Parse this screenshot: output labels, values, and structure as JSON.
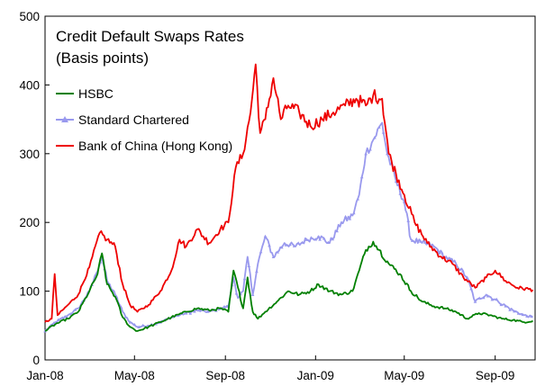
{
  "chart_data": {
    "type": "line",
    "title": "Credit Default Swaps Rates",
    "subtitle": "(Basis points)",
    "xlabel": "",
    "ylabel": "",
    "ylim": [
      0,
      500
    ],
    "yticks": [
      0,
      100,
      200,
      300,
      400,
      500
    ],
    "xlim": [
      "2008-01-01",
      "2009-10-25"
    ],
    "xticks": [
      {
        "date": "2008-01-01",
        "label": "Jan-08"
      },
      {
        "date": "2008-05-01",
        "label": "May-08"
      },
      {
        "date": "2008-09-01",
        "label": "Sep-08"
      },
      {
        "date": "2009-01-01",
        "label": "Jan-09"
      },
      {
        "date": "2009-05-01",
        "label": "May-09"
      },
      {
        "date": "2009-09-01",
        "label": "Sep-09"
      }
    ],
    "grid": false,
    "legend_position": "top-left",
    "series": [
      {
        "name": "HSBC",
        "color": "#008000",
        "marker": "none",
        "points": [
          [
            "2008-01-01",
            42
          ],
          [
            "2008-01-15",
            52
          ],
          [
            "2008-02-01",
            60
          ],
          [
            "2008-02-15",
            70
          ],
          [
            "2008-03-01",
            100
          ],
          [
            "2008-03-12",
            125
          ],
          [
            "2008-03-18",
            155
          ],
          [
            "2008-03-25",
            110
          ],
          [
            "2008-04-05",
            92
          ],
          [
            "2008-04-15",
            62
          ],
          [
            "2008-04-25",
            48
          ],
          [
            "2008-05-05",
            42
          ],
          [
            "2008-05-20",
            48
          ],
          [
            "2008-06-05",
            55
          ],
          [
            "2008-06-20",
            62
          ],
          [
            "2008-07-10",
            70
          ],
          [
            "2008-07-25",
            75
          ],
          [
            "2008-08-10",
            72
          ],
          [
            "2008-08-25",
            75
          ],
          [
            "2008-09-05",
            70
          ],
          [
            "2008-09-12",
            130
          ],
          [
            "2008-09-18",
            105
          ],
          [
            "2008-09-25",
            75
          ],
          [
            "2008-10-01",
            120
          ],
          [
            "2008-10-08",
            70
          ],
          [
            "2008-10-15",
            60
          ],
          [
            "2008-10-25",
            70
          ],
          [
            "2008-11-10",
            85
          ],
          [
            "2008-11-25",
            100
          ],
          [
            "2008-12-10",
            95
          ],
          [
            "2008-12-25",
            100
          ],
          [
            "2009-01-05",
            110
          ],
          [
            "2009-01-20",
            100
          ],
          [
            "2009-02-05",
            95
          ],
          [
            "2009-02-20",
            100
          ],
          [
            "2009-03-01",
            130
          ],
          [
            "2009-03-10",
            160
          ],
          [
            "2009-03-20",
            172
          ],
          [
            "2009-03-28",
            160
          ],
          [
            "2009-04-10",
            140
          ],
          [
            "2009-04-25",
            125
          ],
          [
            "2009-05-10",
            100
          ],
          [
            "2009-05-25",
            85
          ],
          [
            "2009-06-10",
            78
          ],
          [
            "2009-06-25",
            75
          ],
          [
            "2009-07-10",
            70
          ],
          [
            "2009-07-25",
            60
          ],
          [
            "2009-08-10",
            68
          ],
          [
            "2009-08-25",
            65
          ],
          [
            "2009-09-10",
            60
          ],
          [
            "2009-09-25",
            58
          ],
          [
            "2009-10-10",
            55
          ],
          [
            "2009-10-22",
            57
          ]
        ]
      },
      {
        "name": "Standard Chartered",
        "color": "#9999ee",
        "marker": "triangle",
        "points": [
          [
            "2008-01-01",
            42
          ],
          [
            "2008-01-15",
            55
          ],
          [
            "2008-02-01",
            65
          ],
          [
            "2008-02-15",
            75
          ],
          [
            "2008-03-01",
            100
          ],
          [
            "2008-03-10",
            125
          ],
          [
            "2008-03-18",
            150
          ],
          [
            "2008-03-25",
            115
          ],
          [
            "2008-04-05",
            95
          ],
          [
            "2008-04-15",
            70
          ],
          [
            "2008-04-25",
            55
          ],
          [
            "2008-05-05",
            48
          ],
          [
            "2008-05-20",
            50
          ],
          [
            "2008-06-05",
            55
          ],
          [
            "2008-06-20",
            62
          ],
          [
            "2008-07-10",
            68
          ],
          [
            "2008-07-25",
            72
          ],
          [
            "2008-08-10",
            70
          ],
          [
            "2008-08-25",
            75
          ],
          [
            "2008-09-05",
            78
          ],
          [
            "2008-09-12",
            120
          ],
          [
            "2008-09-18",
            90
          ],
          [
            "2008-09-25",
            100
          ],
          [
            "2008-10-01",
            150
          ],
          [
            "2008-10-08",
            95
          ],
          [
            "2008-10-15",
            140
          ],
          [
            "2008-10-25",
            180
          ],
          [
            "2008-11-05",
            150
          ],
          [
            "2008-11-20",
            170
          ],
          [
            "2008-12-05",
            165
          ],
          [
            "2008-12-20",
            175
          ],
          [
            "2009-01-05",
            180
          ],
          [
            "2009-01-20",
            170
          ],
          [
            "2009-02-05",
            200
          ],
          [
            "2009-02-20",
            210
          ],
          [
            "2009-03-01",
            240
          ],
          [
            "2009-03-10",
            300
          ],
          [
            "2009-03-20",
            320
          ],
          [
            "2009-04-01",
            345
          ],
          [
            "2009-04-08",
            300
          ],
          [
            "2009-04-20",
            260
          ],
          [
            "2009-05-01",
            230
          ],
          [
            "2009-05-10",
            175
          ],
          [
            "2009-05-25",
            170
          ],
          [
            "2009-06-10",
            165
          ],
          [
            "2009-06-25",
            150
          ],
          [
            "2009-07-10",
            140
          ],
          [
            "2009-07-25",
            120
          ],
          [
            "2009-08-05",
            85
          ],
          [
            "2009-08-20",
            95
          ],
          [
            "2009-09-05",
            85
          ],
          [
            "2009-09-25",
            72
          ],
          [
            "2009-10-10",
            65
          ],
          [
            "2009-10-22",
            62
          ]
        ]
      },
      {
        "name": "Bank of China (Hong Kong)",
        "color": "#ee0000",
        "marker": "none",
        "points": [
          [
            "2008-01-01",
            55
          ],
          [
            "2008-01-10",
            60
          ],
          [
            "2008-01-14",
            125
          ],
          [
            "2008-01-18",
            65
          ],
          [
            "2008-02-01",
            80
          ],
          [
            "2008-02-15",
            95
          ],
          [
            "2008-03-01",
            135
          ],
          [
            "2008-03-15",
            185
          ],
          [
            "2008-03-25",
            175
          ],
          [
            "2008-04-05",
            165
          ],
          [
            "2008-04-15",
            110
          ],
          [
            "2008-04-25",
            80
          ],
          [
            "2008-05-05",
            70
          ],
          [
            "2008-05-20",
            80
          ],
          [
            "2008-06-05",
            100
          ],
          [
            "2008-06-20",
            130
          ],
          [
            "2008-07-01",
            175
          ],
          [
            "2008-07-10",
            165
          ],
          [
            "2008-07-25",
            190
          ],
          [
            "2008-08-10",
            170
          ],
          [
            "2008-08-25",
            190
          ],
          [
            "2008-09-05",
            200
          ],
          [
            "2008-09-15",
            280
          ],
          [
            "2008-09-25",
            300
          ],
          [
            "2008-10-05",
            360
          ],
          [
            "2008-10-12",
            430
          ],
          [
            "2008-10-18",
            330
          ],
          [
            "2008-10-25",
            350
          ],
          [
            "2008-11-05",
            410
          ],
          [
            "2008-11-15",
            350
          ],
          [
            "2008-11-25",
            370
          ],
          [
            "2008-12-10",
            360
          ],
          [
            "2008-12-25",
            340
          ],
          [
            "2009-01-10",
            350
          ],
          [
            "2009-01-25",
            360
          ],
          [
            "2009-02-10",
            370
          ],
          [
            "2009-02-25",
            380
          ],
          [
            "2009-03-10",
            370
          ],
          [
            "2009-03-20",
            385
          ],
          [
            "2009-04-01",
            380
          ],
          [
            "2009-04-10",
            300
          ],
          [
            "2009-04-20",
            270
          ],
          [
            "2009-05-01",
            240
          ],
          [
            "2009-05-15",
            200
          ],
          [
            "2009-06-01",
            170
          ],
          [
            "2009-06-20",
            150
          ],
          [
            "2009-07-05",
            140
          ],
          [
            "2009-07-20",
            120
          ],
          [
            "2009-08-05",
            105
          ],
          [
            "2009-08-20",
            120
          ],
          [
            "2009-09-01",
            130
          ],
          [
            "2009-09-15",
            115
          ],
          [
            "2009-10-01",
            105
          ],
          [
            "2009-10-22",
            102
          ]
        ]
      }
    ]
  }
}
